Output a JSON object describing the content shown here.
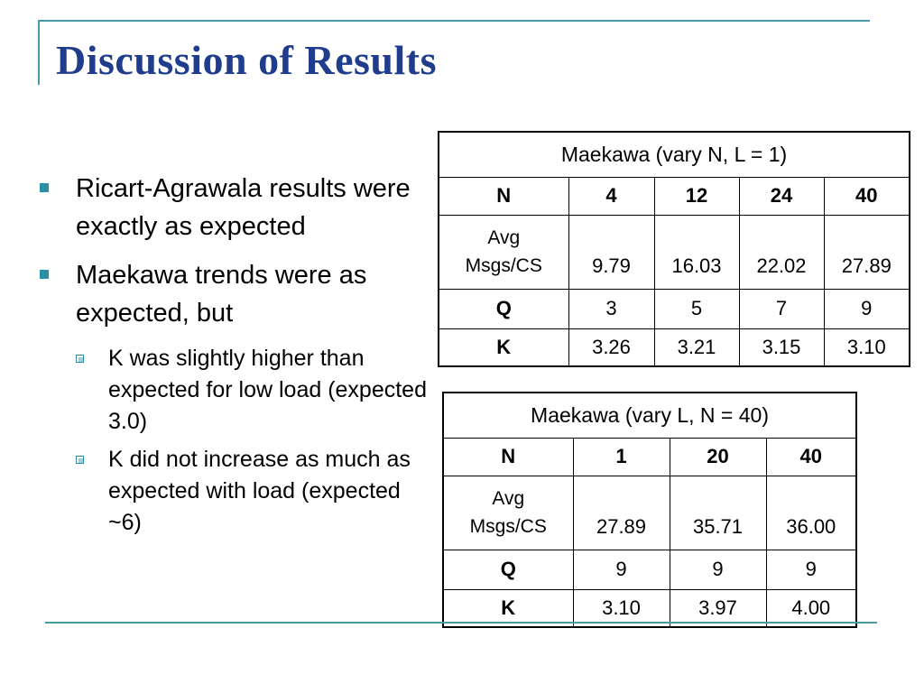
{
  "slide": {
    "title": "Discussion of Results",
    "bullets": [
      "Ricart-Agrawala results were exactly as expected",
      "Maekawa trends were as expected, but"
    ],
    "sub_bullets": [
      "K was slightly higher than expected for low load (expected 3.0)",
      "K did not increase as much as expected with load (expected ~6)"
    ],
    "accent_color": "#4a9aa6",
    "title_color": "#1f3d8c"
  },
  "tables": [
    {
      "caption": "Maekawa (vary N, L = 1)",
      "header": [
        "N",
        "4",
        "12",
        "24",
        "40"
      ],
      "avg_label_1": "Avg",
      "avg_label_2": "Msgs/CS",
      "avg_values": [
        "9.79",
        "16.03",
        "22.02",
        "27.89"
      ],
      "q_label": "Q",
      "q_values": [
        "3",
        "5",
        "7",
        "9"
      ],
      "k_label": "K",
      "k_values": [
        "3.26",
        "3.21",
        "3.15",
        "3.10"
      ]
    },
    {
      "caption": "Maekawa (vary L, N = 40)",
      "header": [
        "N",
        "1",
        "20",
        "40"
      ],
      "avg_label_1": "Avg",
      "avg_label_2": "Msgs/CS",
      "avg_values": [
        "27.89",
        "35.71",
        "36.00"
      ],
      "q_label": "Q",
      "q_values": [
        "9",
        "9",
        "9"
      ],
      "k_label": "K",
      "k_values": [
        "3.10",
        "3.97",
        "4.00"
      ]
    }
  ]
}
